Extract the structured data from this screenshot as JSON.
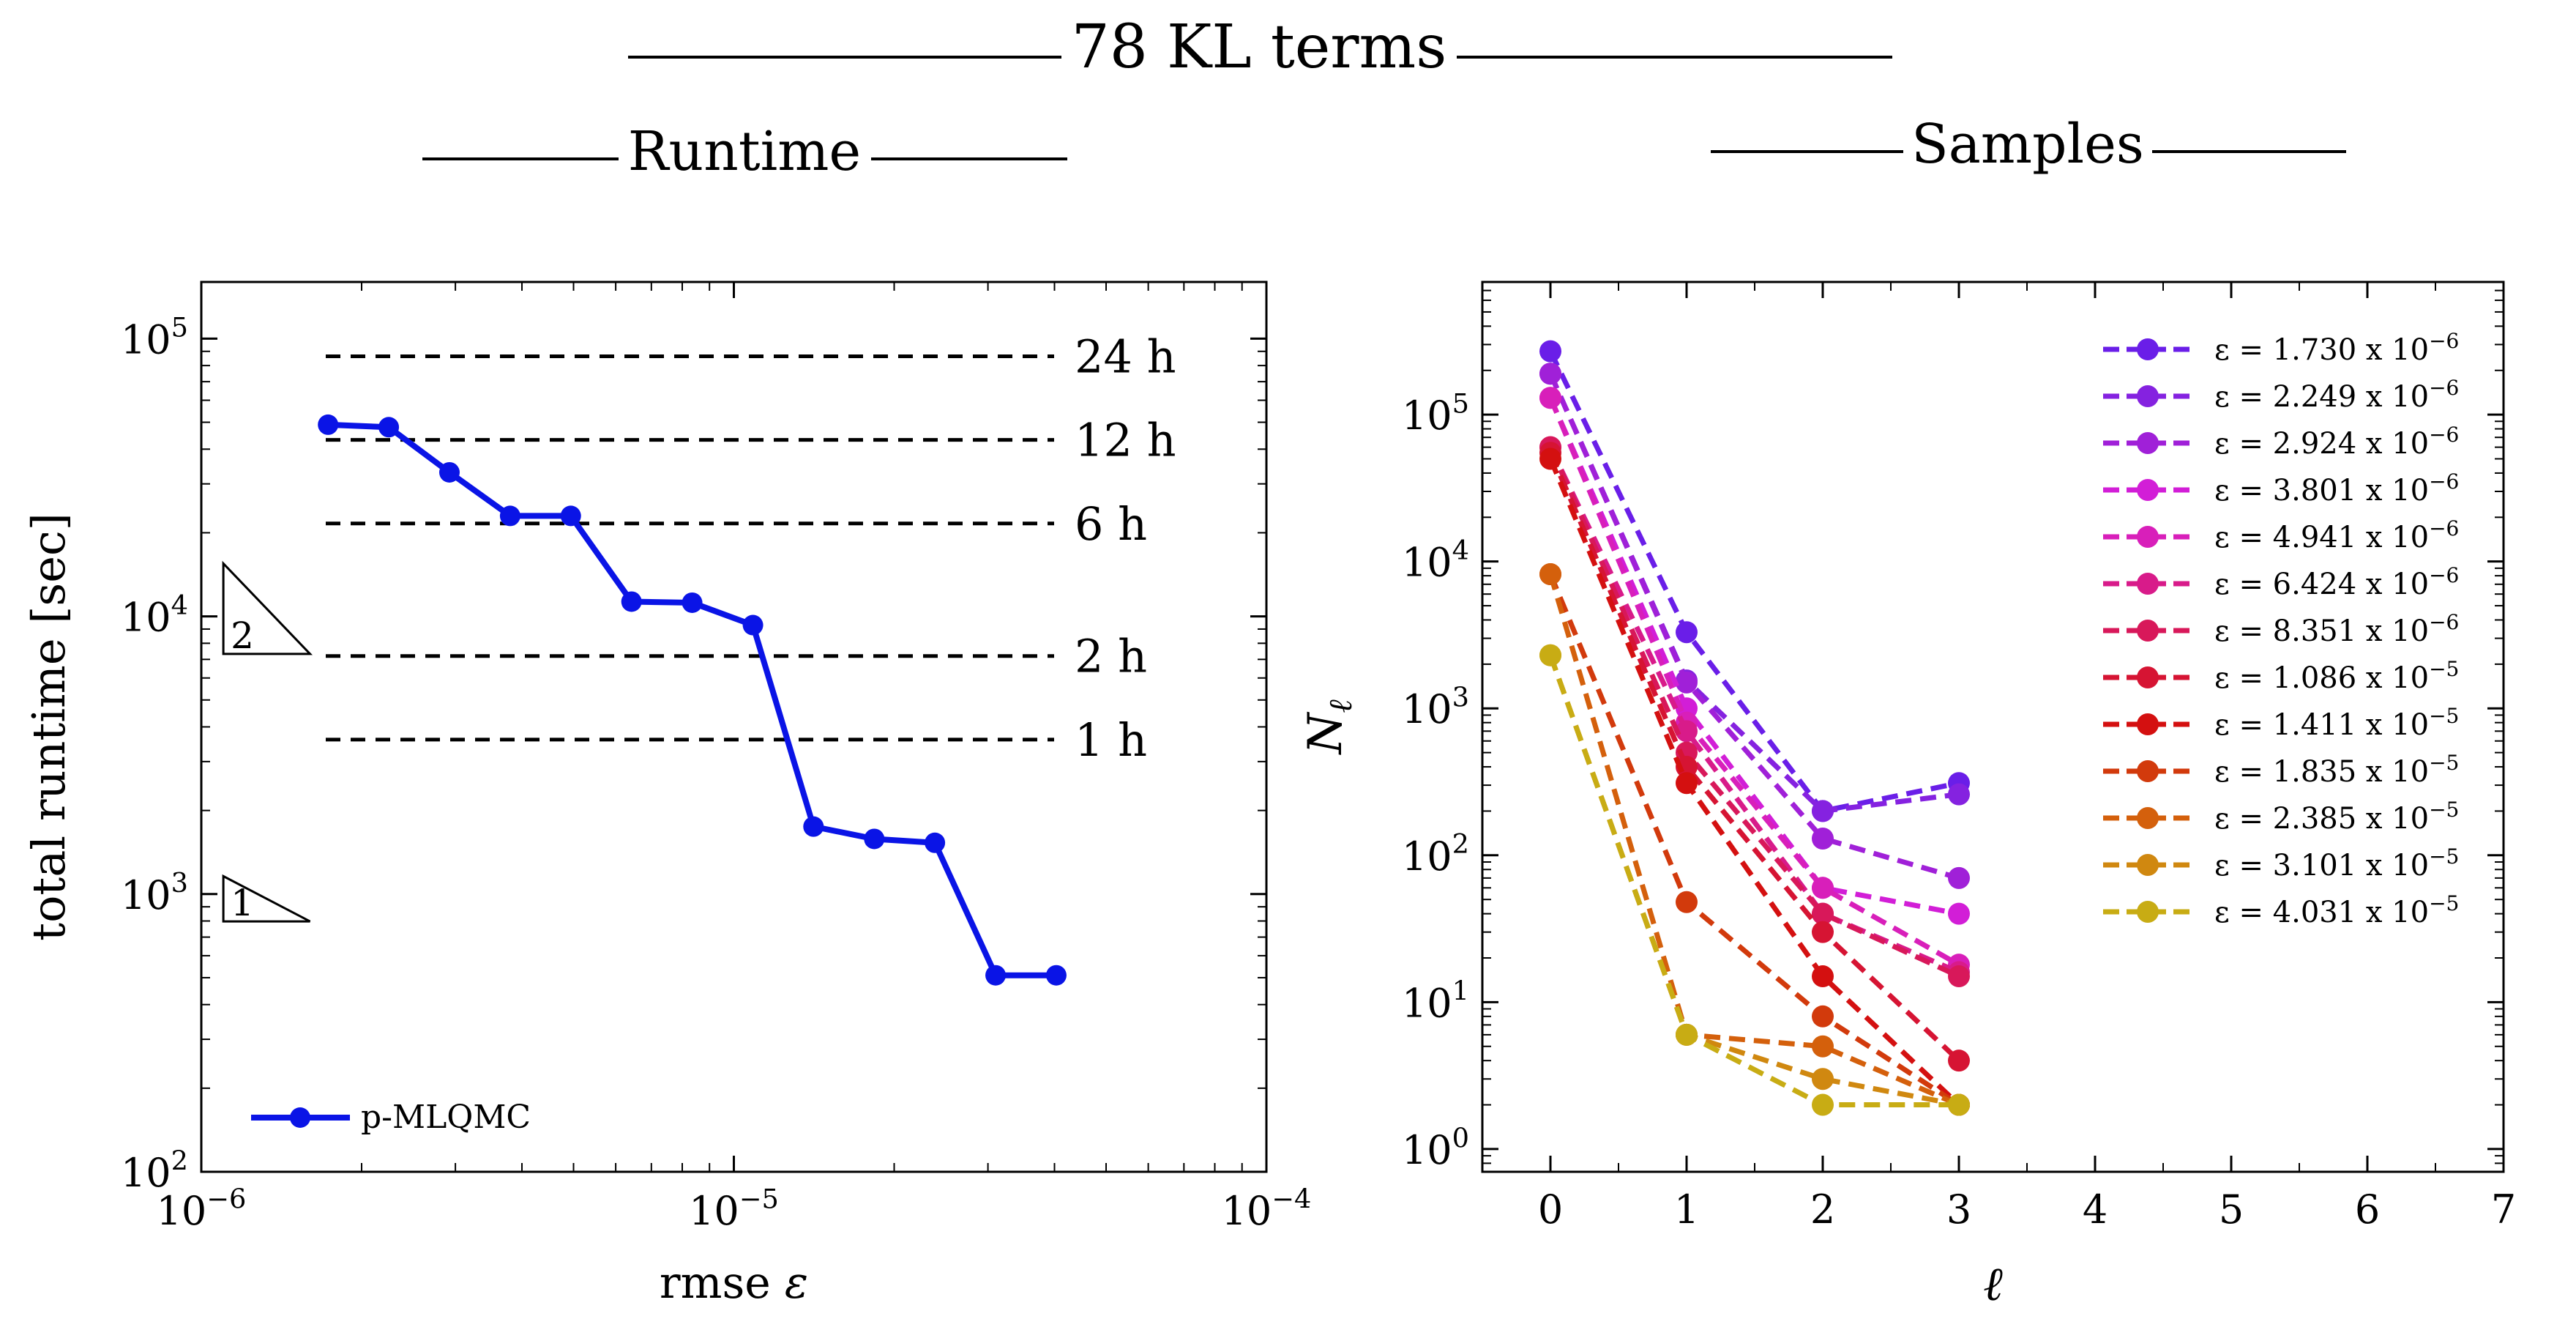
{
  "figure": {
    "title": "78 KL terms",
    "runtime_heading": "Runtime",
    "samples_heading": "Samples"
  },
  "chart_data": [
    {
      "type": "line",
      "id": "runtime",
      "xscale": "log",
      "yscale": "log",
      "xlim": [
        1e-06,
        0.0001
      ],
      "ylim": [
        100,
        160000
      ],
      "xlabel_text": "rmse",
      "xlabel_symbol": "ε",
      "ylabel": "total runtime [sec]",
      "xticks": [
        {
          "value": 1e-06,
          "base": "10",
          "exp": "−6"
        },
        {
          "value": 1e-05,
          "base": "10",
          "exp": "−5"
        },
        {
          "value": 0.0001,
          "base": "10",
          "exp": "−4"
        }
      ],
      "yticks": [
        {
          "value": 100,
          "base": "10",
          "exp": "2"
        },
        {
          "value": 1000,
          "base": "10",
          "exp": "3"
        },
        {
          "value": 10000,
          "base": "10",
          "exp": "4"
        },
        {
          "value": 100000,
          "base": "10",
          "exp": "5"
        }
      ],
      "series": [
        {
          "name": "p-MLQMC",
          "color": "#0a14e6",
          "x": [
            1.73e-06,
            2.249e-06,
            2.924e-06,
            3.801e-06,
            4.941e-06,
            6.424e-06,
            8.351e-06,
            1.086e-05,
            1.411e-05,
            1.835e-05,
            2.385e-05,
            3.101e-05,
            4.031e-05
          ],
          "y": [
            49000,
            48000,
            33000,
            23000,
            23000,
            11300,
            11200,
            9300,
            1750,
            1580,
            1530,
            510,
            510
          ]
        }
      ],
      "reference_lines": [
        {
          "label": "24 h",
          "value": 86400
        },
        {
          "label": "12 h",
          "value": 43200
        },
        {
          "label": "6 h",
          "value": 21600
        },
        {
          "label": "2 h",
          "value": 7200
        },
        {
          "label": "1 h",
          "value": 3600
        }
      ],
      "slope_triangles": [
        {
          "label": "2",
          "slope": -2
        },
        {
          "label": "1",
          "slope": -1
        }
      ],
      "legend_position": "bottom-left"
    },
    {
      "type": "line",
      "id": "samples",
      "xscale": "linear",
      "yscale": "log",
      "xlim": [
        -0.5,
        7
      ],
      "ylim": [
        0.7,
        800000
      ],
      "xlabel": "ℓ",
      "ylabel_base": "N",
      "ylabel_sub": "ℓ",
      "xticks": [
        "0",
        "1",
        "2",
        "3",
        "4",
        "5",
        "6",
        "7"
      ],
      "yticks": [
        {
          "value": 1,
          "base": "10",
          "exp": "0"
        },
        {
          "value": 10,
          "base": "10",
          "exp": "1"
        },
        {
          "value": 100,
          "base": "10",
          "exp": "2"
        },
        {
          "value": 1000,
          "base": "10",
          "exp": "3"
        },
        {
          "value": 10000,
          "base": "10",
          "exp": "4"
        },
        {
          "value": 100000,
          "base": "10",
          "exp": "5"
        }
      ],
      "legend_position": "upper-right",
      "series": [
        {
          "eps_value": "ε = 1.730 x 10",
          "eps_exp": "−6",
          "color": "#6a1ee8",
          "x": [
            0,
            1,
            2,
            3
          ],
          "y": [
            270000,
            3300,
            200,
            310
          ]
        },
        {
          "eps_value": "ε = 2.249 x 10",
          "eps_exp": "−6",
          "color": "#8522e0",
          "x": [
            0,
            1,
            2,
            3
          ],
          "y": [
            190000,
            1550,
            200,
            260
          ]
        },
        {
          "eps_value": "ε = 2.924 x 10",
          "eps_exp": "−6",
          "color": "#a020d8",
          "x": [
            0,
            1,
            2,
            3
          ],
          "y": [
            190000,
            1500,
            130,
            70
          ]
        },
        {
          "eps_value": "ε = 3.801 x 10",
          "eps_exp": "−6",
          "color": "#d21ed7",
          "x": [
            0,
            1,
            2,
            3
          ],
          "y": [
            130000,
            1000,
            60,
            40
          ]
        },
        {
          "eps_value": "ε = 4.941 x 10",
          "eps_exp": "−6",
          "color": "#d81fba",
          "x": [
            0,
            1,
            2,
            3
          ],
          "y": [
            130000,
            800,
            60,
            18
          ]
        },
        {
          "eps_value": "ε = 6.424 x 10",
          "eps_exp": "−6",
          "color": "#d81b8a",
          "x": [
            0,
            1,
            2,
            3
          ],
          "y": [
            60000,
            700,
            40,
            16
          ]
        },
        {
          "eps_value": "ε = 8.351 x 10",
          "eps_exp": "−6",
          "color": "#d8185a",
          "x": [
            0,
            1,
            2,
            3
          ],
          "y": [
            60000,
            500,
            40,
            15
          ]
        },
        {
          "eps_value": "ε = 1.086 x 10",
          "eps_exp": "−5",
          "color": "#d61433",
          "x": [
            0,
            1,
            2,
            3
          ],
          "y": [
            55000,
            400,
            30,
            4
          ]
        },
        {
          "eps_value": "ε = 1.411 x 10",
          "eps_exp": "−5",
          "color": "#d41010",
          "x": [
            0,
            1,
            2,
            3
          ],
          "y": [
            50000,
            310,
            15,
            2
          ]
        },
        {
          "eps_value": "ε = 1.835 x 10",
          "eps_exp": "−5",
          "color": "#d23a0c",
          "x": [
            0,
            1,
            2,
            3
          ],
          "y": [
            8200,
            48,
            8,
            2
          ]
        },
        {
          "eps_value": "ε = 2.385 x 10",
          "eps_exp": "−5",
          "color": "#d4600c",
          "x": [
            0,
            1,
            2,
            3
          ],
          "y": [
            8200,
            6,
            5,
            2
          ]
        },
        {
          "eps_value": "ε = 3.101 x 10",
          "eps_exp": "−5",
          "color": "#d08810",
          "x": [
            0,
            1,
            2,
            3
          ],
          "y": [
            2300,
            6,
            3,
            2
          ]
        },
        {
          "eps_value": "ε = 4.031 x 10",
          "eps_exp": "−5",
          "color": "#c8ac14",
          "x": [
            0,
            1,
            2,
            3
          ],
          "y": [
            2300,
            6,
            2,
            2
          ]
        }
      ]
    }
  ]
}
